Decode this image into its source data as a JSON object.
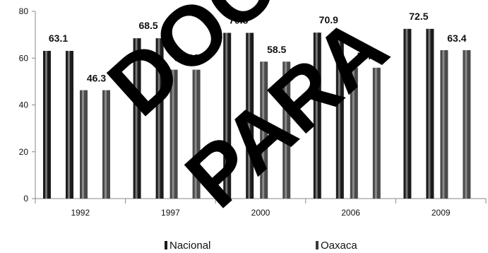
{
  "chart_data": {
    "type": "bar",
    "categories": [
      "1992",
      "1997",
      "2000",
      "2006",
      "2009"
    ],
    "series": [
      {
        "name": "Nacional",
        "values": [
          63.1,
          68.5,
          70.8,
          70.9,
          72.5
        ],
        "color": "#1a1a1a"
      },
      {
        "name": "Oaxaca",
        "values": [
          46.3,
          55.06,
          58.5,
          55.9,
          63.4
        ],
        "color": "#3a3a3a"
      }
    ],
    "data_labels": [
      "63.1",
      "46.3",
      "68.5",
      "55.06",
      "70.8",
      "58.5",
      "70.9",
      "55.9",
      "72.5",
      "63.4"
    ],
    "ylim": [
      0,
      80
    ],
    "yticks": [
      "0",
      "20",
      "40",
      "60",
      "80"
    ],
    "title": "",
    "xlabel": "",
    "ylabel": "",
    "grid": false,
    "legend_position": "bottom"
  },
  "watermark": {
    "words": [
      "DOC",
      "PARA"
    ],
    "color": "#000000"
  }
}
